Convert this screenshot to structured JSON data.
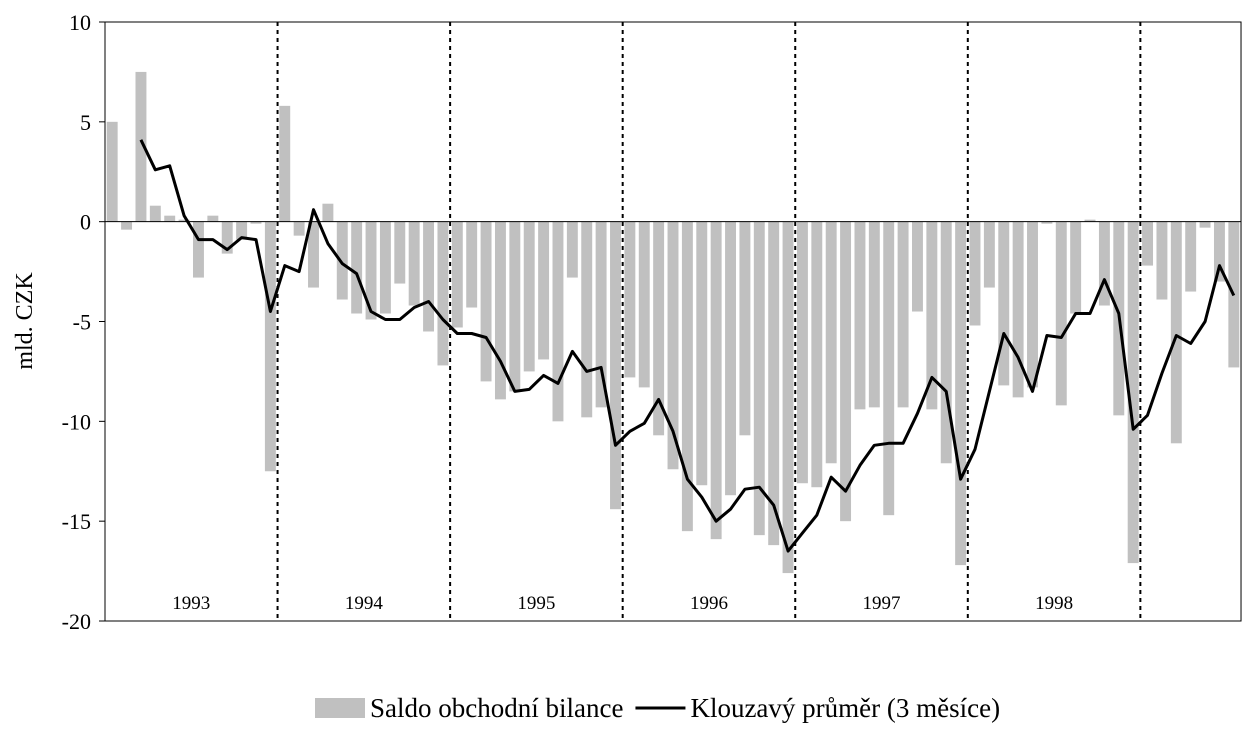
{
  "chart_data": {
    "type": "bar+line",
    "y_label": "mld. CZK",
    "ylim": [
      -20,
      10
    ],
    "yticks": [
      -20,
      -15,
      -10,
      -5,
      0,
      5,
      10
    ],
    "year_labels": [
      "1993",
      "1994",
      "1995",
      "1996",
      "1997",
      "1998"
    ],
    "legend_position": "bottom",
    "series": [
      {
        "name": "Saldo obchodní bilance",
        "type": "bar",
        "color": "#c0c0c0",
        "values": [
          5.0,
          -0.4,
          7.5,
          0.8,
          0.3,
          0.1,
          -2.8,
          0.3,
          -1.6,
          -0.9,
          -0.1,
          -12.5,
          5.8,
          -0.7,
          -3.3,
          0.9,
          -3.9,
          -4.6,
          -4.9,
          -4.6,
          -3.1,
          -4.2,
          -5.5,
          -7.2,
          -5.3,
          -4.3,
          -8.0,
          -8.9,
          -8.5,
          -7.5,
          -6.9,
          -10.0,
          -2.8,
          -9.8,
          -9.3,
          -14.4,
          -7.8,
          -8.3,
          -10.7,
          -12.4,
          -15.5,
          -13.2,
          -15.9,
          -13.7,
          -10.7,
          -15.7,
          -16.2,
          -17.6,
          -13.1,
          -13.3,
          -12.1,
          -15.0,
          -9.4,
          -9.3,
          -14.7,
          -9.3,
          -4.5,
          -9.4,
          -12.1,
          -17.2,
          -5.2,
          -3.3,
          -8.2,
          -8.8,
          -8.3,
          -0.1,
          -9.2,
          -4.6,
          0.1,
          -4.2,
          -9.7,
          -17.1,
          -2.2,
          -3.9,
          -11.1,
          -3.5,
          -0.3,
          -3.0,
          -7.3
        ]
      },
      {
        "name": "Klouzavý průměr (3 měsíce)",
        "type": "line",
        "color": "#000000",
        "values": [
          null,
          null,
          4.1,
          2.6,
          2.8,
          0.3,
          -0.9,
          -0.9,
          -1.4,
          -0.8,
          -0.9,
          -4.5,
          -2.2,
          -2.5,
          0.6,
          -1.1,
          -2.1,
          -2.6,
          -4.5,
          -4.9,
          -4.9,
          -4.3,
          -4.0,
          -4.9,
          -5.6,
          -5.6,
          -5.8,
          -7.0,
          -8.5,
          -8.4,
          -7.7,
          -8.1,
          -6.5,
          -7.5,
          -7.3,
          -11.2,
          -10.5,
          -10.1,
          -8.9,
          -10.5,
          -12.9,
          -13.8,
          -15.0,
          -14.4,
          -13.4,
          -13.3,
          -14.2,
          -16.5,
          -15.6,
          -14.7,
          -12.8,
          -13.5,
          -12.2,
          -11.2,
          -11.1,
          -11.1,
          -9.6,
          -7.8,
          -8.5,
          -12.9,
          -11.4,
          -8.5,
          -5.6,
          -6.8,
          -8.5,
          -5.7,
          -5.8,
          -4.6,
          -4.6,
          -2.9,
          -4.6,
          -10.4,
          -9.7,
          -7.6,
          -5.7,
          -6.1,
          -5.0,
          -2.2,
          -3.7
        ]
      }
    ]
  }
}
